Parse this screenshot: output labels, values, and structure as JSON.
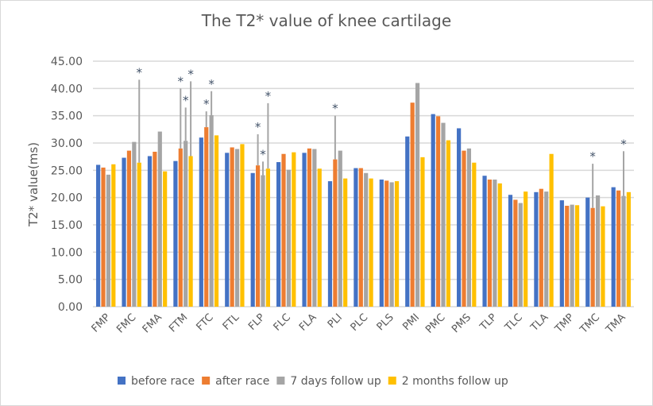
{
  "chart_data": {
    "type": "bar",
    "title": "The T2* value of knee cartilage",
    "xlabel": "",
    "ylabel": "T2* value(ms)",
    "ylim": [
      0,
      45
    ],
    "yticks": [
      "0.00",
      "5.00",
      "10.00",
      "15.00",
      "20.00",
      "25.00",
      "30.00",
      "35.00",
      "40.00",
      "45.00"
    ],
    "grid": true,
    "legend_position": "bottom",
    "categories": [
      "FMP",
      "FMC",
      "FMA",
      "FTM",
      "FTC",
      "FTL",
      "FLP",
      "FLC",
      "FLA",
      "PLI",
      "PLC",
      "PLS",
      "PMI",
      "PMC",
      "PMS",
      "TLP",
      "TLC",
      "TLA",
      "TMP",
      "TMC",
      "TMA"
    ],
    "series": [
      {
        "name": "before race",
        "color": "#4472c4",
        "values": [
          26.0,
          27.3,
          27.6,
          26.7,
          31.0,
          28.2,
          24.5,
          26.5,
          28.2,
          23.0,
          25.4,
          23.3,
          31.2,
          35.3,
          32.7,
          24.0,
          20.5,
          21.0,
          19.5,
          20.0,
          21.9
        ]
      },
      {
        "name": "after race",
        "color": "#ed7d31",
        "values": [
          25.5,
          28.6,
          28.4,
          29.0,
          32.9,
          29.2,
          25.9,
          28.0,
          29.0,
          27.0,
          25.4,
          23.1,
          37.4,
          34.9,
          28.6,
          23.3,
          19.6,
          21.6,
          18.5,
          18.1,
          21.3
        ]
      },
      {
        "name": "7 days follow up",
        "color": "#a5a5a5",
        "values": [
          24.2,
          30.2,
          32.1,
          30.4,
          35.1,
          28.9,
          24.1,
          25.1,
          28.9,
          28.6,
          24.5,
          22.8,
          41.0,
          33.7,
          29.0,
          23.3,
          19.0,
          21.1,
          18.7,
          20.4,
          20.3
        ]
      },
      {
        "name": "2 months follow up",
        "color": "#ffc000",
        "values": [
          26.1,
          26.4,
          24.8,
          27.6,
          31.4,
          29.8,
          25.3,
          28.3,
          25.3,
          23.5,
          23.5,
          23.0,
          27.4,
          30.5,
          26.4,
          22.6,
          21.1,
          28.0,
          18.6,
          18.4,
          21.0
        ]
      }
    ],
    "significance_markers": [
      {
        "category": "FMC",
        "series_index": 3,
        "line_top": 41.6,
        "label": "*"
      },
      {
        "category": "FTM",
        "series_index": 1,
        "line_top": 40.0,
        "label": "*"
      },
      {
        "category": "FTM",
        "series_index": 2,
        "line_top": 36.5,
        "label": "*"
      },
      {
        "category": "FTM",
        "series_index": 3,
        "line_top": 41.3,
        "label": "*"
      },
      {
        "category": "FTC",
        "series_index": 1,
        "line_top": 35.8,
        "label": "*"
      },
      {
        "category": "FTC",
        "series_index": 2,
        "line_top": 39.5,
        "label": "*"
      },
      {
        "category": "FLP",
        "series_index": 1,
        "line_top": 31.6,
        "label": "*"
      },
      {
        "category": "FLP",
        "series_index": 2,
        "line_top": 26.6,
        "label": "*"
      },
      {
        "category": "FLP",
        "series_index": 3,
        "line_top": 37.3,
        "label": "*"
      },
      {
        "category": "PLI",
        "series_index": 1,
        "line_top": 35.0,
        "label": "*"
      },
      {
        "category": "TMC",
        "series_index": 1,
        "line_top": 26.2,
        "label": "*"
      },
      {
        "category": "TMA",
        "series_index": 2,
        "line_top": 28.5,
        "label": "*"
      }
    ]
  }
}
